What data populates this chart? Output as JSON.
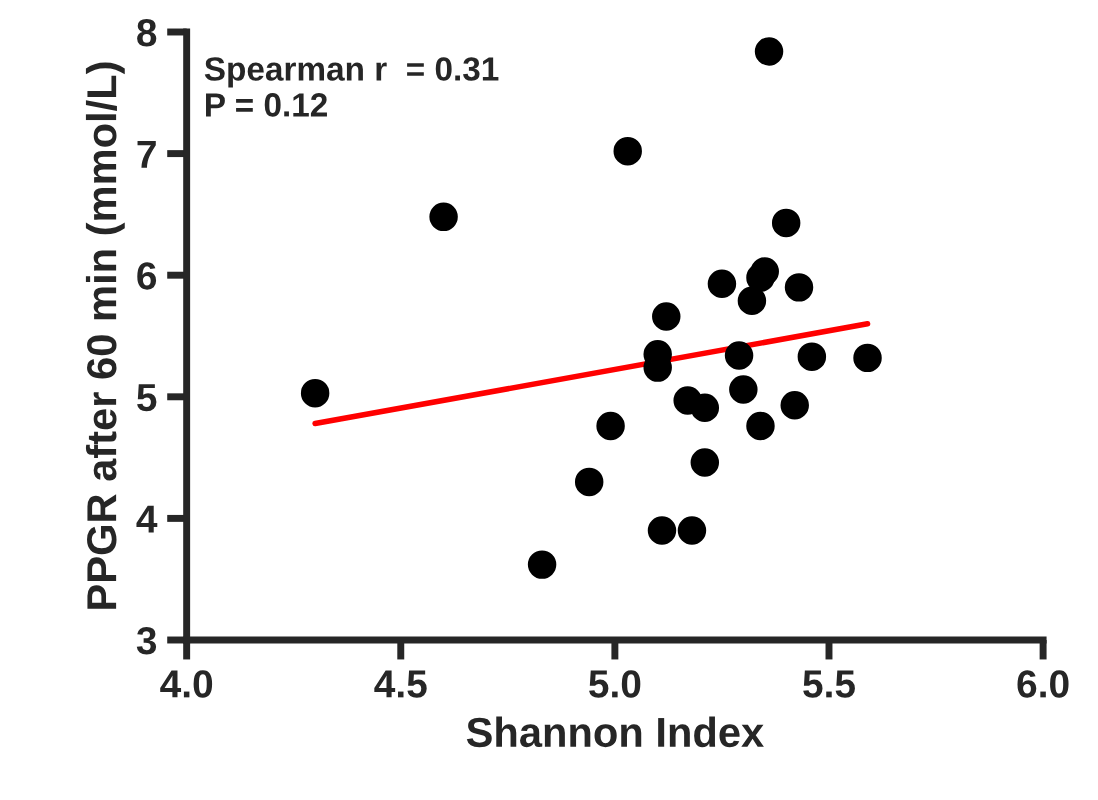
{
  "chart_data": {
    "type": "scatter",
    "xlabel": "Shannon Index",
    "ylabel": "PPGR after 60 min (mmol/L)",
    "annotations": [
      "Spearman r  = 0.31\nP = 0.12"
    ],
    "series": [
      {
        "color": "#000000",
        "marker": "circle",
        "x": [
          4.3,
          4.6,
          5.03,
          5.36,
          5.4,
          5.35,
          5.34,
          5.25,
          5.43,
          5.32,
          5.12,
          5.1,
          5.1,
          5.29,
          5.46,
          5.59,
          5.3,
          5.17,
          5.21,
          5.42,
          4.99,
          5.34,
          5.21,
          4.94,
          5.11,
          5.18,
          4.83
        ],
        "values": [
          5.03,
          6.48,
          7.02,
          7.84,
          6.43,
          6.03,
          5.98,
          5.93,
          5.9,
          5.79,
          5.66,
          5.35,
          5.24,
          5.34,
          5.33,
          5.32,
          5.06,
          4.97,
          4.91,
          4.93,
          4.76,
          4.76,
          4.46,
          4.3,
          3.9,
          3.9,
          3.62
        ]
      },
      {
        "type": "line",
        "color": "#ff0000",
        "x": [
          4.3,
          5.59
        ],
        "values": [
          4.78,
          5.6
        ]
      }
    ],
    "xlim": [
      4.0,
      6.0
    ],
    "xticks": [
      {
        "value": 4.0,
        "label": "4.0"
      },
      {
        "value": 4.5,
        "label": "4.5"
      },
      {
        "value": 5.0,
        "label": "5.0"
      },
      {
        "value": 5.5,
        "label": "5.5"
      },
      {
        "value": 6.0,
        "label": "6.0"
      }
    ],
    "ylim": [
      3,
      8
    ],
    "yticks": [
      3,
      4,
      5,
      6,
      7,
      8
    ]
  }
}
